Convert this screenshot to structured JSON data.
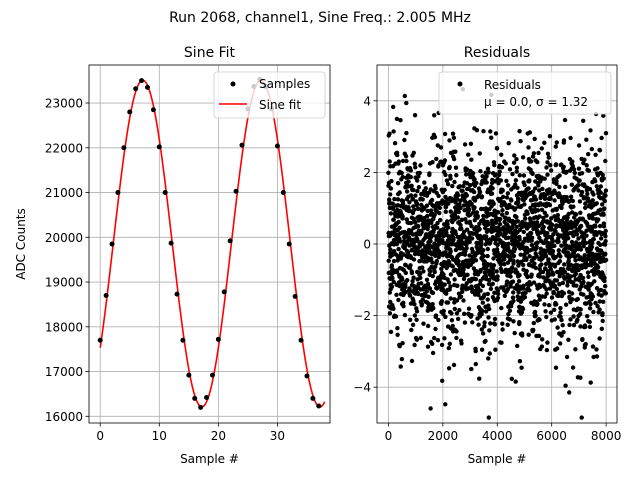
{
  "suptitle": "Run 2068, channel1, Sine Freq.: 2.005 MHz",
  "chart_data": [
    {
      "type": "scatter",
      "title": "Sine Fit",
      "xlabel": "Sample #",
      "ylabel": "ADC Counts",
      "xlim": [
        -1.9,
        38.9
      ],
      "ylim": [
        15850,
        23850
      ],
      "xticks": [
        0,
        10,
        20,
        30
      ],
      "yticks": [
        16000,
        17000,
        18000,
        19000,
        20000,
        21000,
        22000,
        23000
      ],
      "grid": true,
      "legend_position": "top-right",
      "series": [
        {
          "name": "Samples",
          "kind": "points",
          "color": "#000000",
          "x": [
            0,
            1,
            2,
            3,
            4,
            5,
            6,
            7,
            8,
            9,
            10,
            11,
            12,
            13,
            14,
            15,
            16,
            17,
            18,
            19,
            20,
            21,
            22,
            23,
            24,
            25,
            26,
            27,
            28,
            29,
            30,
            31,
            32,
            33,
            34,
            35,
            36,
            37
          ],
          "y": [
            17700,
            18700,
            19850,
            21000,
            22000,
            22800,
            23320,
            23500,
            23350,
            22850,
            22020,
            21000,
            19870,
            18730,
            17700,
            16920,
            16400,
            16200,
            16420,
            16920,
            17720,
            18780,
            19920,
            21030,
            22060,
            22870,
            23370,
            23530,
            23370,
            22870,
            22040,
            21000,
            19850,
            18680,
            17700,
            16900,
            16400,
            16230
          ]
        },
        {
          "name": "Sine fit",
          "kind": "line",
          "color": "#ff0000",
          "model": {
            "offset": 19860,
            "amplitude": 3650,
            "period_samples": 20.0,
            "phase_peak_x": 7.2
          },
          "x_range": [
            0,
            38
          ]
        }
      ]
    },
    {
      "type": "scatter",
      "title": "Residuals",
      "xlabel": "Sample #",
      "ylabel": "",
      "xlim": [
        -420,
        8400
      ],
      "ylim": [
        -5.0,
        5.0
      ],
      "xticks": [
        0,
        2000,
        4000,
        6000,
        8000
      ],
      "yticks": [
        -4,
        -2,
        0,
        2,
        4
      ],
      "grid": true,
      "legend_position": "top-right",
      "series": [
        {
          "name": "Residuals",
          "kind": "points",
          "color": "#000000",
          "n_points": 8000,
          "mean": 0.0,
          "std": 1.32,
          "x_range": [
            0,
            7999
          ]
        }
      ],
      "legend_stats": "μ = 0.0, σ = 1.32"
    }
  ]
}
